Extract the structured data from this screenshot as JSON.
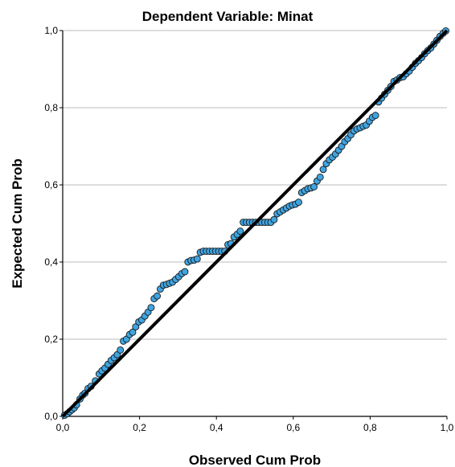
{
  "chart_data": {
    "type": "scatter",
    "title": "Dependent Variable: Minat",
    "xlabel": "Observed Cum Prob",
    "ylabel": "Expected Cum Prob",
    "xlim": [
      0,
      1
    ],
    "ylim": [
      0,
      1
    ],
    "x_ticks": [
      "0,0",
      "0,2",
      "0,4",
      "0,6",
      "0,8",
      "1,0"
    ],
    "y_ticks": [
      "0,0",
      "0,2",
      "0,4",
      "0,6",
      "0,8",
      "1,0"
    ],
    "grid": "horizontal",
    "reference_line": [
      [
        0,
        0
      ],
      [
        1,
        1
      ]
    ],
    "colors": {
      "point_fill": "#3fa4e0",
      "point_stroke": "#1a1a1a",
      "line": "#000000",
      "grid": "#bbbbbb"
    },
    "series": [
      {
        "points": [
          [
            0.005,
            0.003
          ],
          [
            0.012,
            0.007
          ],
          [
            0.018,
            0.012
          ],
          [
            0.024,
            0.017
          ],
          [
            0.03,
            0.022
          ],
          [
            0.036,
            0.03
          ],
          [
            0.045,
            0.045
          ],
          [
            0.052,
            0.055
          ],
          [
            0.058,
            0.06
          ],
          [
            0.066,
            0.072
          ],
          [
            0.074,
            0.078
          ],
          [
            0.085,
            0.092
          ],
          [
            0.095,
            0.11
          ],
          [
            0.102,
            0.118
          ],
          [
            0.11,
            0.125
          ],
          [
            0.118,
            0.135
          ],
          [
            0.126,
            0.145
          ],
          [
            0.134,
            0.152
          ],
          [
            0.142,
            0.16
          ],
          [
            0.15,
            0.172
          ],
          [
            0.158,
            0.195
          ],
          [
            0.166,
            0.2
          ],
          [
            0.174,
            0.212
          ],
          [
            0.182,
            0.218
          ],
          [
            0.19,
            0.232
          ],
          [
            0.198,
            0.245
          ],
          [
            0.206,
            0.25
          ],
          [
            0.214,
            0.26
          ],
          [
            0.222,
            0.27
          ],
          [
            0.23,
            0.282
          ],
          [
            0.238,
            0.305
          ],
          [
            0.246,
            0.312
          ],
          [
            0.254,
            0.33
          ],
          [
            0.262,
            0.34
          ],
          [
            0.27,
            0.342
          ],
          [
            0.278,
            0.345
          ],
          [
            0.286,
            0.348
          ],
          [
            0.294,
            0.355
          ],
          [
            0.302,
            0.362
          ],
          [
            0.31,
            0.37
          ],
          [
            0.318,
            0.375
          ],
          [
            0.326,
            0.4
          ],
          [
            0.334,
            0.404
          ],
          [
            0.342,
            0.405
          ],
          [
            0.35,
            0.408
          ],
          [
            0.358,
            0.425
          ],
          [
            0.366,
            0.428
          ],
          [
            0.374,
            0.428
          ],
          [
            0.382,
            0.428
          ],
          [
            0.39,
            0.428
          ],
          [
            0.398,
            0.428
          ],
          [
            0.406,
            0.428
          ],
          [
            0.414,
            0.428
          ],
          [
            0.422,
            0.428
          ],
          [
            0.43,
            0.445
          ],
          [
            0.438,
            0.448
          ],
          [
            0.446,
            0.465
          ],
          [
            0.454,
            0.472
          ],
          [
            0.462,
            0.48
          ],
          [
            0.47,
            0.503
          ],
          [
            0.478,
            0.503
          ],
          [
            0.486,
            0.503
          ],
          [
            0.494,
            0.503
          ],
          [
            0.502,
            0.503
          ],
          [
            0.51,
            0.503
          ],
          [
            0.518,
            0.503
          ],
          [
            0.526,
            0.503
          ],
          [
            0.534,
            0.503
          ],
          [
            0.542,
            0.503
          ],
          [
            0.55,
            0.51
          ],
          [
            0.558,
            0.525
          ],
          [
            0.566,
            0.53
          ],
          [
            0.574,
            0.535
          ],
          [
            0.582,
            0.54
          ],
          [
            0.59,
            0.545
          ],
          [
            0.598,
            0.548
          ],
          [
            0.606,
            0.55
          ],
          [
            0.614,
            0.555
          ],
          [
            0.622,
            0.58
          ],
          [
            0.63,
            0.585
          ],
          [
            0.638,
            0.59
          ],
          [
            0.646,
            0.592
          ],
          [
            0.654,
            0.595
          ],
          [
            0.662,
            0.61
          ],
          [
            0.67,
            0.62
          ],
          [
            0.678,
            0.64
          ],
          [
            0.686,
            0.655
          ],
          [
            0.694,
            0.665
          ],
          [
            0.702,
            0.672
          ],
          [
            0.71,
            0.68
          ],
          [
            0.718,
            0.69
          ],
          [
            0.726,
            0.7
          ],
          [
            0.734,
            0.712
          ],
          [
            0.742,
            0.72
          ],
          [
            0.75,
            0.73
          ],
          [
            0.758,
            0.74
          ],
          [
            0.766,
            0.745
          ],
          [
            0.774,
            0.748
          ],
          [
            0.782,
            0.752
          ],
          [
            0.79,
            0.755
          ],
          [
            0.798,
            0.765
          ],
          [
            0.806,
            0.775
          ],
          [
            0.814,
            0.78
          ],
          [
            0.822,
            0.815
          ],
          [
            0.83,
            0.825
          ],
          [
            0.838,
            0.835
          ],
          [
            0.846,
            0.845
          ],
          [
            0.854,
            0.855
          ],
          [
            0.862,
            0.868
          ],
          [
            0.87,
            0.872
          ],
          [
            0.878,
            0.878
          ],
          [
            0.886,
            0.88
          ],
          [
            0.894,
            0.888
          ],
          [
            0.902,
            0.895
          ],
          [
            0.91,
            0.905
          ],
          [
            0.918,
            0.915
          ],
          [
            0.926,
            0.922
          ],
          [
            0.934,
            0.93
          ],
          [
            0.942,
            0.94
          ],
          [
            0.95,
            0.948
          ],
          [
            0.958,
            0.955
          ],
          [
            0.966,
            0.965
          ],
          [
            0.974,
            0.975
          ],
          [
            0.982,
            0.985
          ],
          [
            0.99,
            0.993
          ],
          [
            0.997,
            0.999
          ]
        ]
      }
    ]
  }
}
